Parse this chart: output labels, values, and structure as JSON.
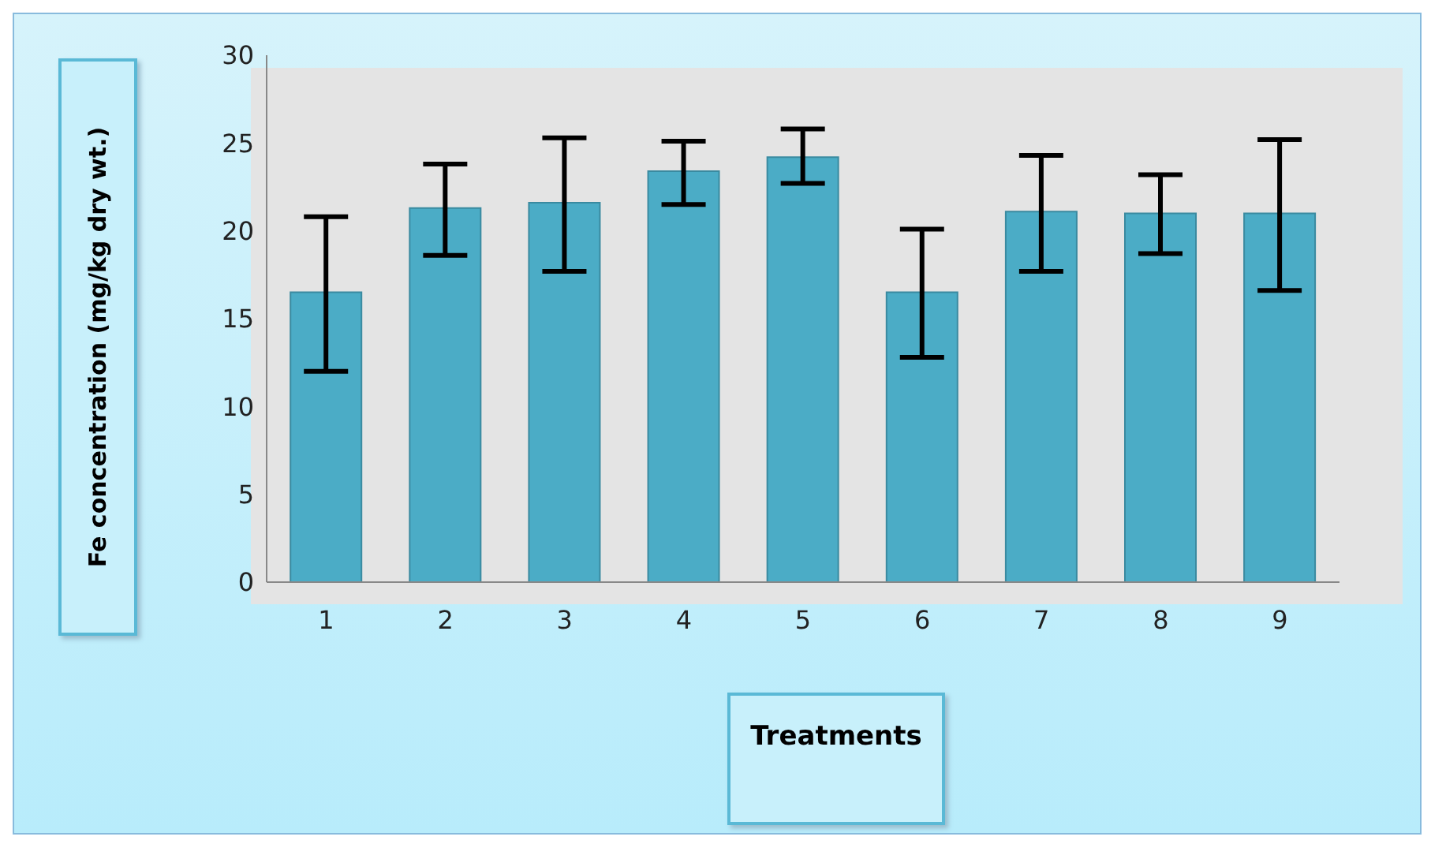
{
  "chart_data": {
    "type": "bar",
    "xlabel": "Treatments",
    "ylabel": "Fe concentration (mg/kg dry wt.)",
    "categories": [
      "1",
      "2",
      "3",
      "4",
      "5",
      "6",
      "7",
      "8",
      "9"
    ],
    "values": [
      16.5,
      21.3,
      21.6,
      23.4,
      24.2,
      16.5,
      21.1,
      21.0,
      21.0
    ],
    "errors": [
      [
        12.0,
        20.8
      ],
      [
        18.6,
        23.8
      ],
      [
        17.7,
        25.3
      ],
      [
        21.5,
        25.1
      ],
      [
        22.7,
        25.8
      ],
      [
        12.8,
        20.1
      ],
      [
        17.7,
        24.3
      ],
      [
        18.7,
        23.2
      ],
      [
        16.6,
        25.2
      ]
    ],
    "color": "#4bacc6",
    "ylim": [
      0,
      30
    ],
    "yticks": [
      0,
      5,
      10,
      15,
      20,
      25,
      30
    ],
    "grid": false,
    "legend": false
  }
}
